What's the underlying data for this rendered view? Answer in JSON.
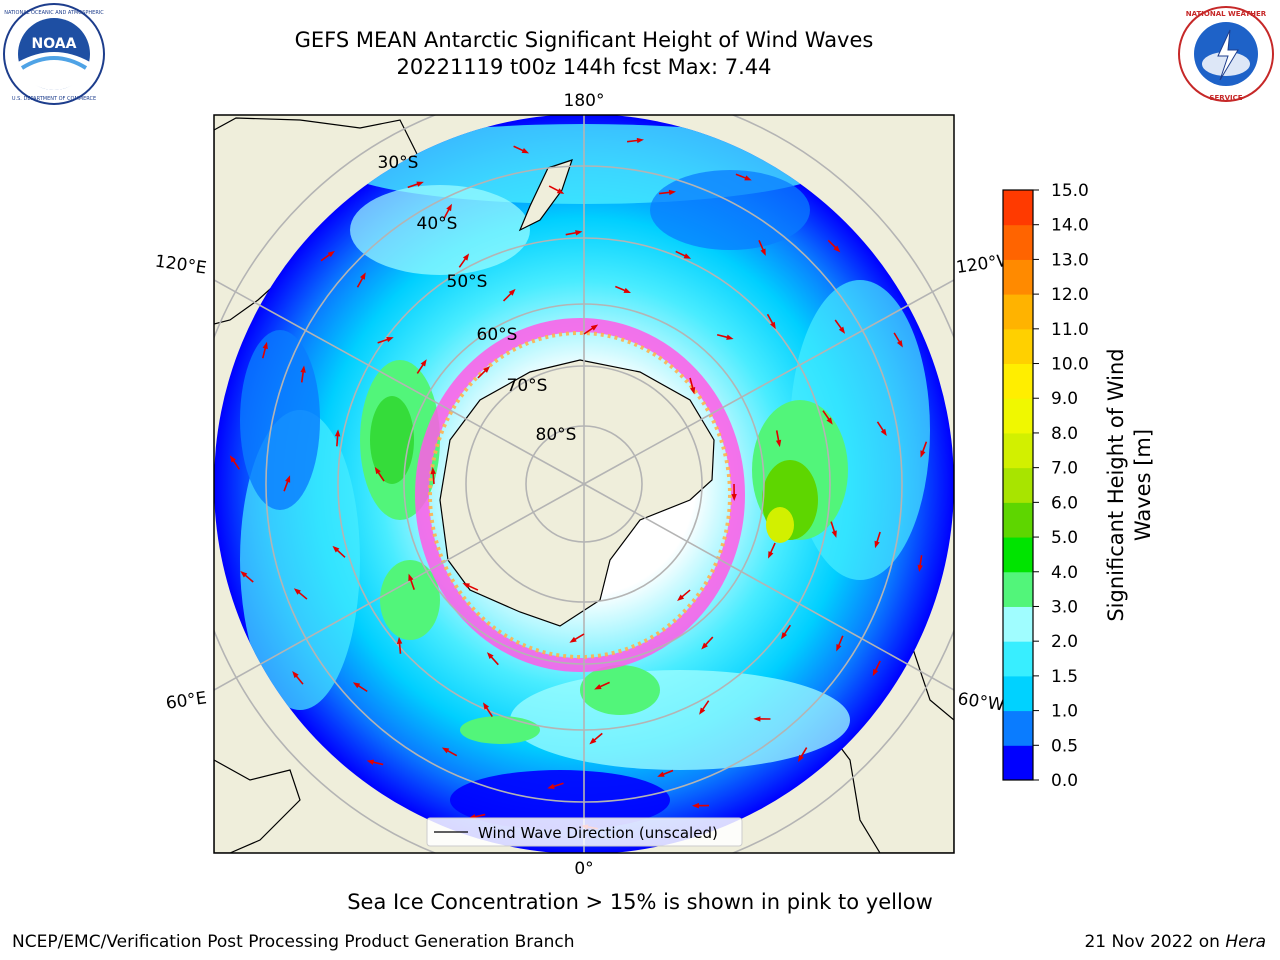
{
  "header": {
    "title_line1": "GEFS MEAN Antarctic Significant Height of Wind Waves",
    "title_line2": "20221119 t00z 144h fcst   Max: 7.44"
  },
  "logos": {
    "left": {
      "icon": "noaa-logo-icon",
      "center_text": "NOAA",
      "ring_text": "NATIONAL OCEANIC AND ATMOSPHERIC ADMINISTRATION · U.S. DEPARTMENT OF COMMERCE"
    },
    "right": {
      "icon": "nws-logo-icon",
      "ring_text": "NATIONAL WEATHER SERVICE"
    }
  },
  "map": {
    "projection": "south-polar-stereographic",
    "longitude_labels": {
      "top": "180°",
      "bottom": "0°",
      "left_upper": "120°E",
      "left_lower": "60°E",
      "right_upper": "120°W",
      "right_lower": "60°W"
    },
    "latitude_labels": [
      "30°S",
      "40°S",
      "50°S",
      "60°S",
      "70°S",
      "80°S"
    ],
    "legend_label": "Wind Wave Direction (unscaled)"
  },
  "colorbar": {
    "label": "Significant Height of Wind Waves [m]",
    "ticks": [
      "0.0",
      "0.5",
      "1.0",
      "1.5",
      "2.0",
      "3.0",
      "4.0",
      "5.0",
      "6.0",
      "7.0",
      "8.0",
      "9.0",
      "10.0",
      "11.0",
      "12.0",
      "13.0",
      "14.0",
      "15.0"
    ],
    "colors": [
      "#0000ff",
      "#0a7cff",
      "#00d2ff",
      "#38eeff",
      "#a0fdff",
      "#52f57a",
      "#00e400",
      "#5ed600",
      "#a8e400",
      "#d2f000",
      "#f0f800",
      "#ffee00",
      "#ffd000",
      "#ffb300",
      "#ff8a00",
      "#ff6400",
      "#ff3a00",
      "#ff0000"
    ]
  },
  "chart_data": {
    "type": "map",
    "title": "GEFS MEAN Antarctic Significant Height of Wind Waves",
    "subtitle": "20221119 t00z 144h fcst   Max: 7.44",
    "max_value": 7.44,
    "units": "m",
    "colorbar_range": [
      0.0,
      15.0
    ],
    "legend": "Wind Wave Direction (unscaled)",
    "annotation": "Sea Ice Concentration > 15% is shown in pink to yellow"
  },
  "caption": "Sea Ice Concentration > 15% is shown in pink to yellow",
  "footer": {
    "left": "NCEP/EMC/Verification Post Processing Product Generation Branch",
    "right_date": "21 Nov 2022 on ",
    "right_system": "Hera"
  }
}
